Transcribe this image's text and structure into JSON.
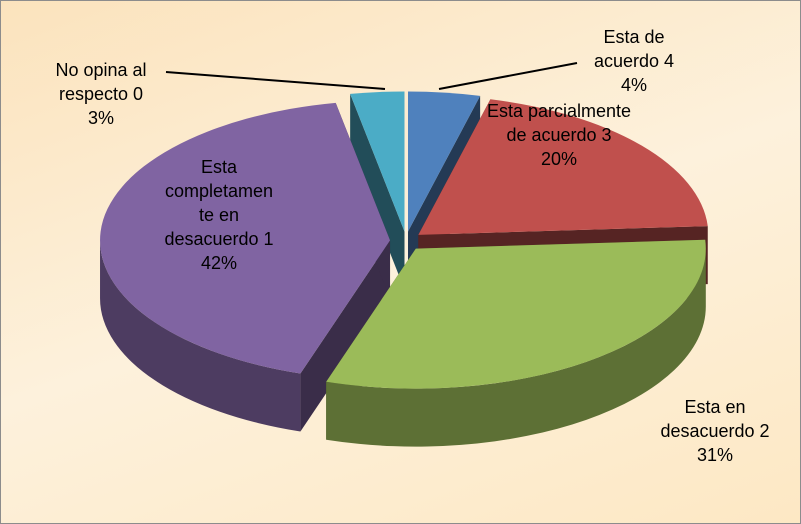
{
  "chart_data": {
    "type": "pie",
    "categories": [
      "Esta de acuerdo 4",
      "Esta parcialmente de acuerdo 3",
      "Esta en desacuerdo 2",
      "Esta completamente en desacuerdo 1",
      "No opina al respecto 0"
    ],
    "values": [
      4,
      20,
      31,
      42,
      3
    ],
    "value_labels": [
      "4%",
      "20%",
      "31%",
      "42%",
      "3%"
    ],
    "colors": [
      "#4f81bd",
      "#c0504d",
      "#9bbb59",
      "#8064a2",
      "#4bacc6"
    ]
  }
}
